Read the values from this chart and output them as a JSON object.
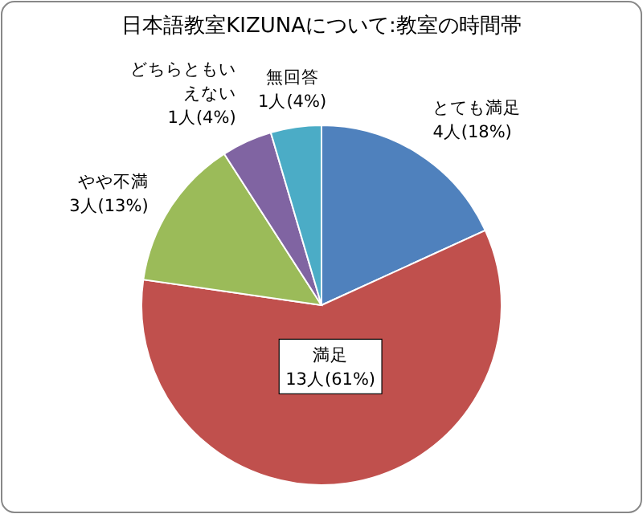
{
  "chart_data": {
    "type": "pie",
    "title": "日本語教室KIZUNAについて:教室の時間帯",
    "categories": [
      "とても満足",
      "満足",
      "やや不満",
      "どちらともいえない",
      "無回答"
    ],
    "values": [
      4,
      13,
      3,
      1,
      1
    ],
    "value_labels": [
      "4人(18%)",
      "13人(61%)",
      "3人(13%)",
      "1人(4%)",
      "1人(4%)"
    ],
    "colors": [
      "#4f81bd",
      "#c0504d",
      "#9bbb59",
      "#8064a2",
      "#4bacc6"
    ]
  }
}
